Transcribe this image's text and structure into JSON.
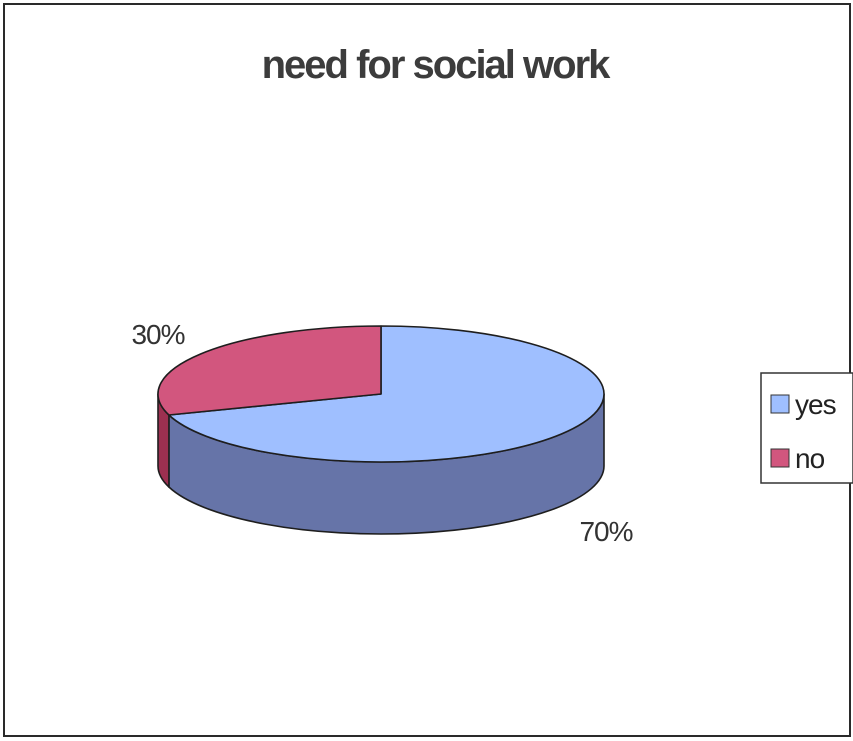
{
  "chart_data": {
    "type": "pie",
    "style": "3d",
    "title": "need for social work",
    "categories": [
      "yes",
      "no"
    ],
    "values": [
      70,
      30
    ],
    "data_labels": [
      "70%",
      "30%"
    ],
    "colors": [
      "#9fbfff",
      "#d2567e"
    ],
    "side_colors": [
      "#6674a8",
      "#9c3050"
    ],
    "legend": {
      "placement": "right",
      "entries": [
        {
          "label": "yes",
          "color": "#9fbfff"
        },
        {
          "label": "no",
          "color": "#d2567e"
        }
      ]
    }
  }
}
